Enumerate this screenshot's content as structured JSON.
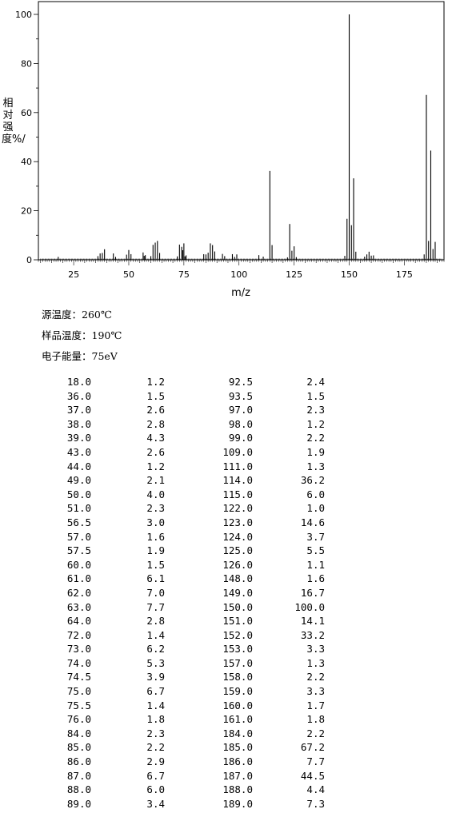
{
  "chart_data": {
    "type": "bar",
    "xlabel": "m/z",
    "ylabel": "相对强度%/",
    "xlim": [
      9,
      193
    ],
    "ylim": [
      0,
      104
    ],
    "xticks": [
      25,
      50,
      75,
      100,
      125,
      150,
      175
    ],
    "yticks": [
      0,
      20,
      40,
      60,
      80,
      100
    ],
    "peaks": [
      [
        18.0,
        1.2
      ],
      [
        36.0,
        1.5
      ],
      [
        37.0,
        2.6
      ],
      [
        38.0,
        2.8
      ],
      [
        39.0,
        4.3
      ],
      [
        43.0,
        2.6
      ],
      [
        44.0,
        1.2
      ],
      [
        49.0,
        2.1
      ],
      [
        50.0,
        4.0
      ],
      [
        51.0,
        2.3
      ],
      [
        56.5,
        3.0
      ],
      [
        57.0,
        1.6
      ],
      [
        57.5,
        1.9
      ],
      [
        60.0,
        1.5
      ],
      [
        61.0,
        6.1
      ],
      [
        62.0,
        7.0
      ],
      [
        63.0,
        7.7
      ],
      [
        64.0,
        2.8
      ],
      [
        72.0,
        1.4
      ],
      [
        73.0,
        6.2
      ],
      [
        74.0,
        5.3
      ],
      [
        74.5,
        3.9
      ],
      [
        75.0,
        6.7
      ],
      [
        75.5,
        1.4
      ],
      [
        76.0,
        1.8
      ],
      [
        84.0,
        2.3
      ],
      [
        85.0,
        2.2
      ],
      [
        86.0,
        2.9
      ],
      [
        87.0,
        6.7
      ],
      [
        88.0,
        6.0
      ],
      [
        89.0,
        3.4
      ],
      [
        92.5,
        2.4
      ],
      [
        93.5,
        1.5
      ],
      [
        97.0,
        2.3
      ],
      [
        98.0,
        1.2
      ],
      [
        99.0,
        2.2
      ],
      [
        109.0,
        1.9
      ],
      [
        111.0,
        1.3
      ],
      [
        114.0,
        36.2
      ],
      [
        115.0,
        6.0
      ],
      [
        122.0,
        1.0
      ],
      [
        123.0,
        14.6
      ],
      [
        124.0,
        3.7
      ],
      [
        125.0,
        5.5
      ],
      [
        126.0,
        1.1
      ],
      [
        148.0,
        1.6
      ],
      [
        149.0,
        16.7
      ],
      [
        150.0,
        100.0
      ],
      [
        151.0,
        14.1
      ],
      [
        152.0,
        33.2
      ],
      [
        153.0,
        3.3
      ],
      [
        157.0,
        1.3
      ],
      [
        158.0,
        2.2
      ],
      [
        159.0,
        3.3
      ],
      [
        160.0,
        1.7
      ],
      [
        161.0,
        1.8
      ],
      [
        184.0,
        2.2
      ],
      [
        185.0,
        67.2
      ],
      [
        186.0,
        7.7
      ],
      [
        187.0,
        44.5
      ],
      [
        188.0,
        4.4
      ],
      [
        189.0,
        7.3
      ]
    ]
  },
  "conditions": {
    "source_temp": "源温度：260℃",
    "sample_temp": "样品温度：190℃",
    "electron_energy": "电子能量：75eV"
  },
  "peak_table": {
    "rows": [
      [
        "18.0",
        "1.2",
        "92.5",
        "2.4"
      ],
      [
        "36.0",
        "1.5",
        "93.5",
        "1.5"
      ],
      [
        "37.0",
        "2.6",
        "97.0",
        "2.3"
      ],
      [
        "38.0",
        "2.8",
        "98.0",
        "1.2"
      ],
      [
        "39.0",
        "4.3",
        "99.0",
        "2.2"
      ],
      [
        "43.0",
        "2.6",
        "109.0",
        "1.9"
      ],
      [
        "44.0",
        "1.2",
        "111.0",
        "1.3"
      ],
      [
        "49.0",
        "2.1",
        "114.0",
        "36.2"
      ],
      [
        "50.0",
        "4.0",
        "115.0",
        "6.0"
      ],
      [
        "51.0",
        "2.3",
        "122.0",
        "1.0"
      ],
      [
        "56.5",
        "3.0",
        "123.0",
        "14.6"
      ],
      [
        "57.0",
        "1.6",
        "124.0",
        "3.7"
      ],
      [
        "57.5",
        "1.9",
        "125.0",
        "5.5"
      ],
      [
        "60.0",
        "1.5",
        "126.0",
        "1.1"
      ],
      [
        "61.0",
        "6.1",
        "148.0",
        "1.6"
      ],
      [
        "62.0",
        "7.0",
        "149.0",
        "16.7"
      ],
      [
        "63.0",
        "7.7",
        "150.0",
        "100.0"
      ],
      [
        "64.0",
        "2.8",
        "151.0",
        "14.1"
      ],
      [
        "72.0",
        "1.4",
        "152.0",
        "33.2"
      ],
      [
        "73.0",
        "6.2",
        "153.0",
        "3.3"
      ],
      [
        "74.0",
        "5.3",
        "157.0",
        "1.3"
      ],
      [
        "74.5",
        "3.9",
        "158.0",
        "2.2"
      ],
      [
        "75.0",
        "6.7",
        "159.0",
        "3.3"
      ],
      [
        "75.5",
        "1.4",
        "160.0",
        "1.7"
      ],
      [
        "76.0",
        "1.8",
        "161.0",
        "1.8"
      ],
      [
        "84.0",
        "2.3",
        "184.0",
        "2.2"
      ],
      [
        "85.0",
        "2.2",
        "185.0",
        "67.2"
      ],
      [
        "86.0",
        "2.9",
        "186.0",
        "7.7"
      ],
      [
        "87.0",
        "6.7",
        "187.0",
        "44.5"
      ],
      [
        "88.0",
        "6.0",
        "188.0",
        "4.4"
      ],
      [
        "89.0",
        "3.4",
        "189.0",
        "7.3"
      ]
    ]
  }
}
